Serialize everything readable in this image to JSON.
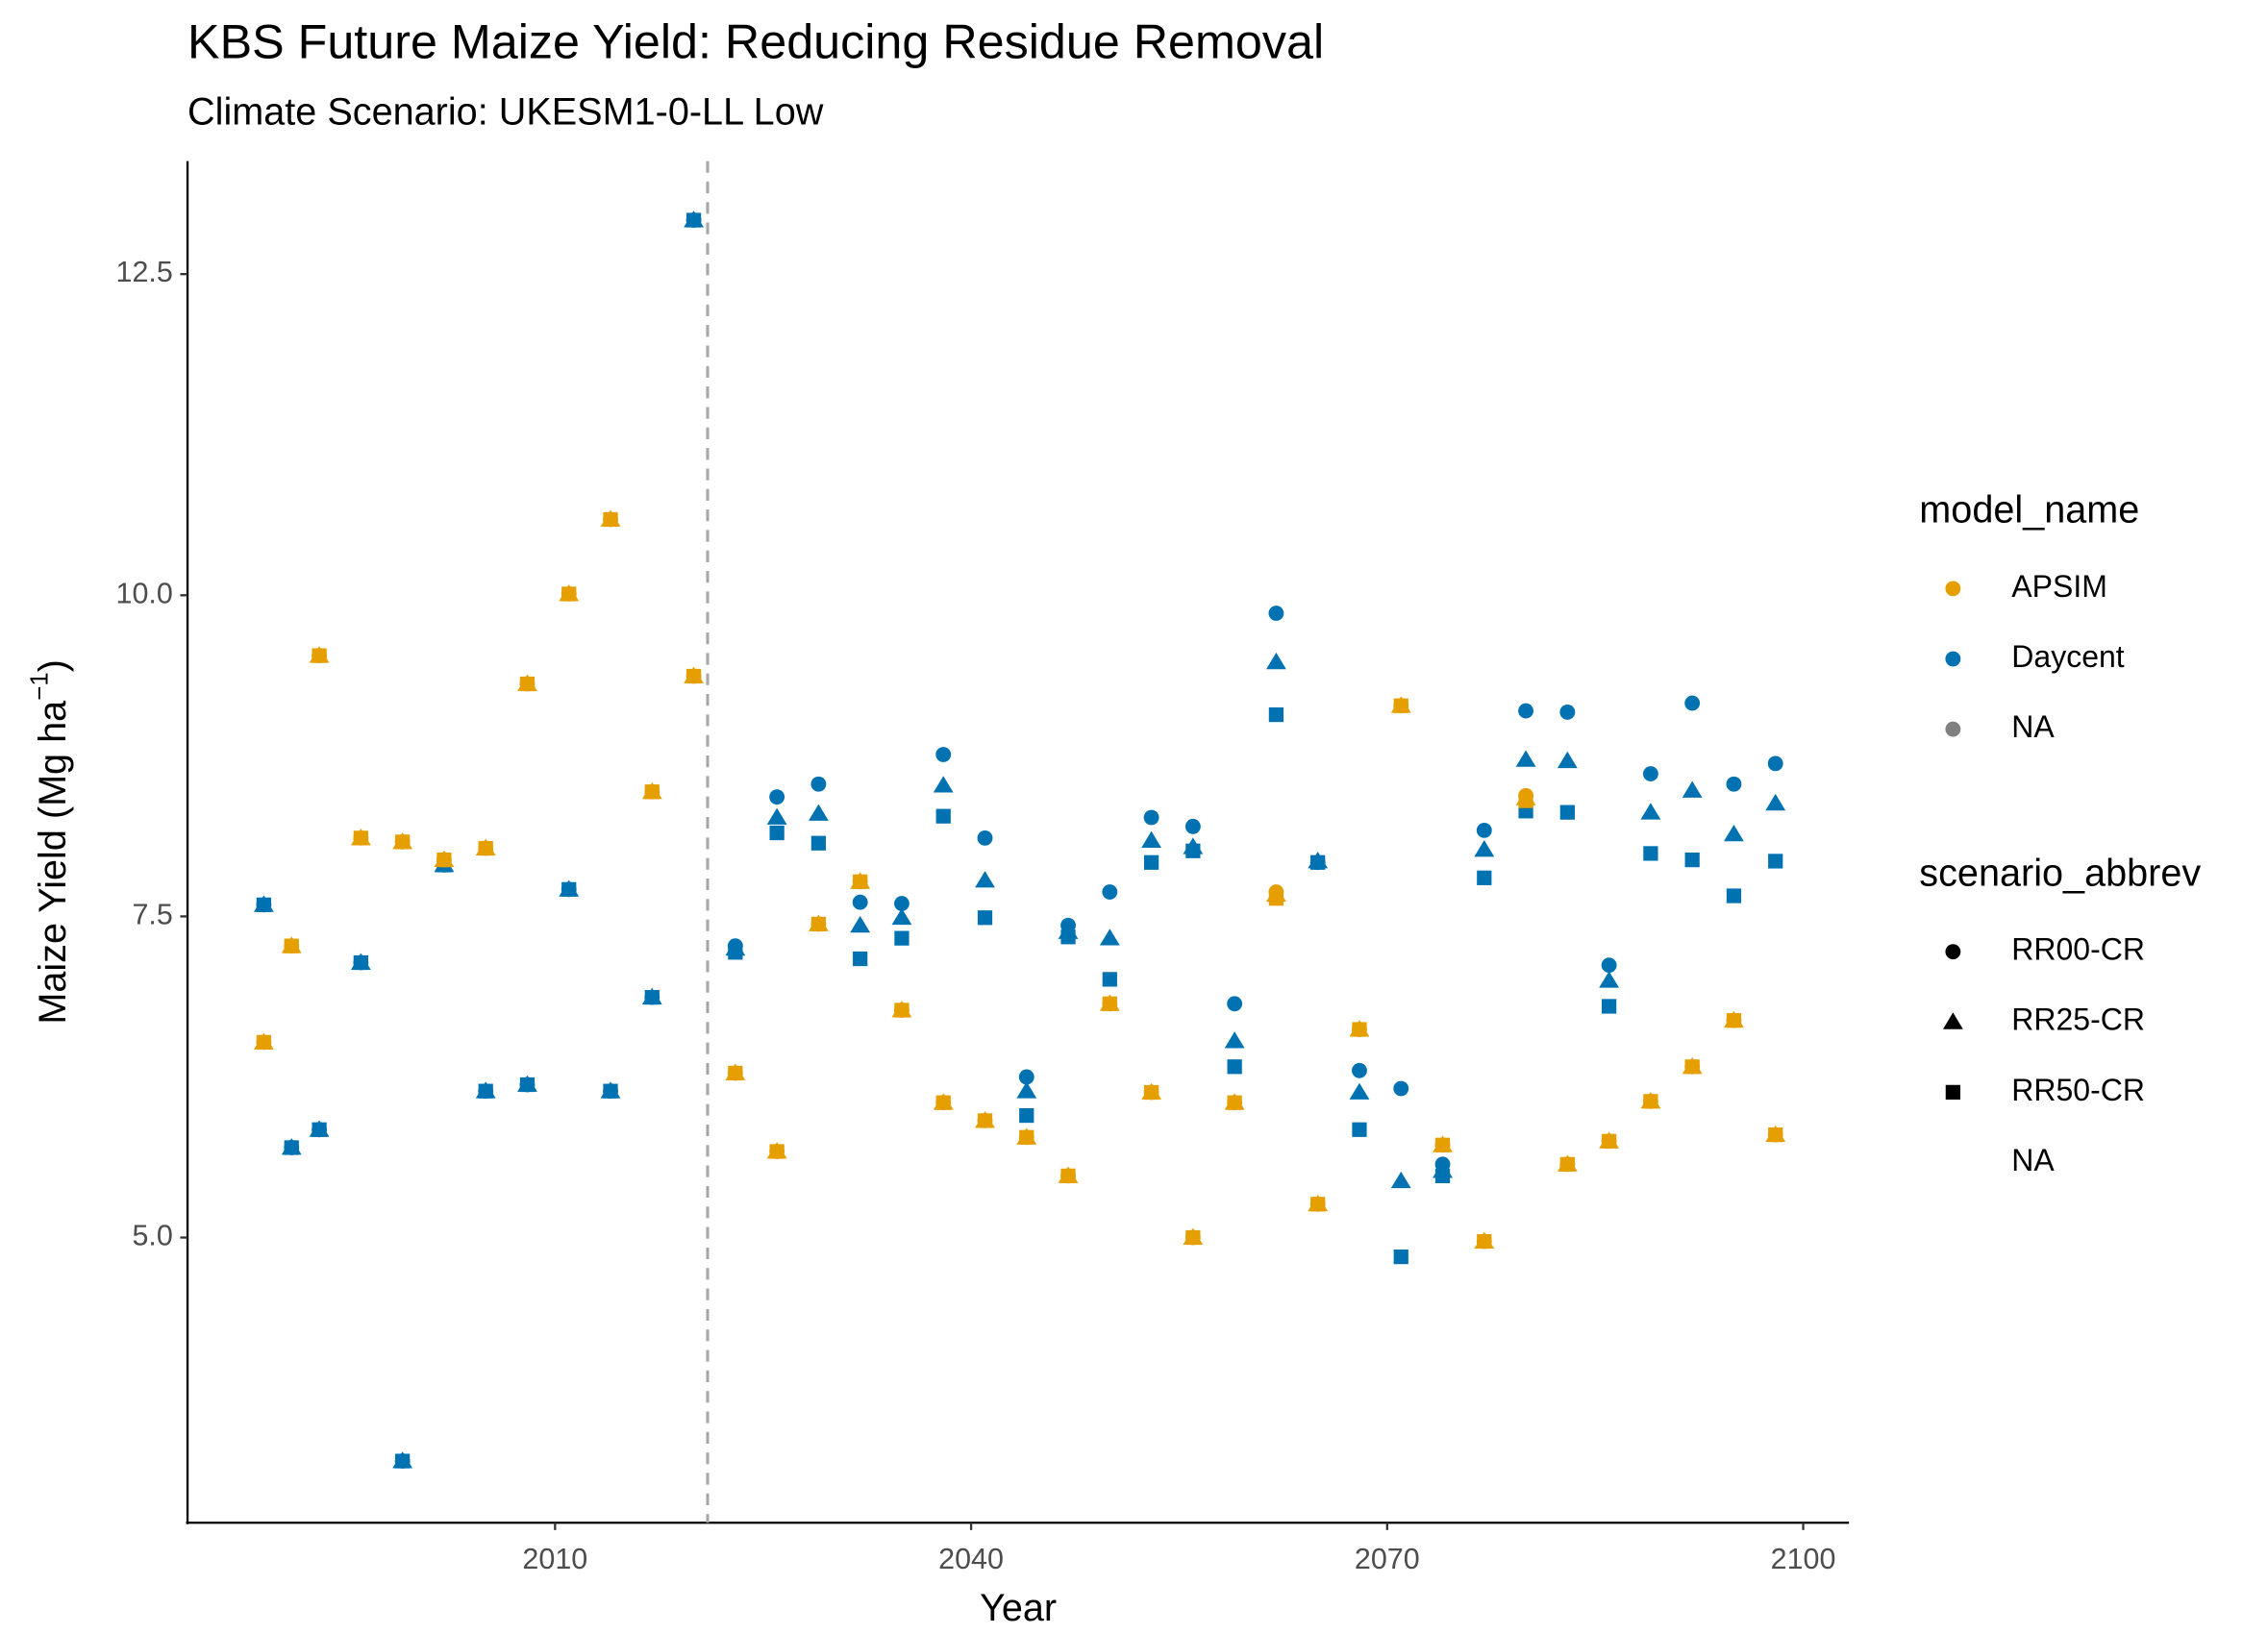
{
  "chart_data": {
    "type": "scatter",
    "title": "KBS Future Maize Yield: Reducing Residue Removal",
    "subtitle": "Climate Scenario: UKESM1-0-LL Low",
    "xlabel": "Year",
    "ylabel": [
      "Maize Yield (Mg ha",
      "−1",
      ")"
    ],
    "xlim": [
      1983.5,
      2103.3
    ],
    "ylim": [
      2.78,
      13.38
    ],
    "xticks": [
      2010,
      2040,
      2070,
      2100
    ],
    "yticks": [
      {
        "value": 5,
        "label": "5.0"
      },
      {
        "value": 7.5,
        "label": "7.5"
      },
      {
        "value": 10,
        "label": "10.0"
      },
      {
        "value": 12.5,
        "label": "12.5"
      }
    ],
    "grid": false,
    "vline": 2021,
    "vline_color": "#a6a6a6",
    "x": [
      1989,
      1991,
      1993,
      1996,
      1999,
      2002,
      2005,
      2008,
      2011,
      2014,
      2017,
      2020,
      2023,
      2026,
      2029,
      2032,
      2035,
      2038,
      2041,
      2044,
      2047,
      2050,
      2053,
      2056,
      2059,
      2062,
      2065,
      2068,
      2071,
      2074,
      2077,
      2080,
      2083,
      2086,
      2089,
      2092,
      2095,
      2098
    ],
    "legends": [
      {
        "title": "model_name",
        "entries": [
          {
            "label": "APSIM",
            "color": "#E69F00"
          },
          {
            "label": "Daycent",
            "color": "#0072B2"
          },
          {
            "label": "NA",
            "color": "#808080"
          }
        ]
      },
      {
        "title": "scenario_abbrev",
        "entries": [
          {
            "label": "RR00-CR",
            "shape": "circle"
          },
          {
            "label": "RR25-CR",
            "shape": "triangle"
          },
          {
            "label": "RR50-CR",
            "shape": "square"
          },
          {
            "label": "NA"
          }
        ]
      }
    ],
    "series": [
      {
        "model": "Daycent",
        "scenario": "RR50-CR",
        "values": [
          7.59,
          5.7,
          5.84,
          7.14,
          3.26,
          7.9,
          6.14,
          6.19,
          7.71,
          6.14,
          6.87,
          12.92,
          7.22,
          8.15,
          8.07,
          7.17,
          7.33,
          8.28,
          7.49,
          5.95,
          7.34,
          7.01,
          7.92,
          8.01,
          6.33,
          9.07,
          7.92,
          5.84,
          4.85,
          5.48,
          7.8,
          8.32,
          8.31,
          6.8,
          7.99,
          7.94,
          7.66,
          7.93
        ]
      },
      {
        "model": "Daycent",
        "scenario": "RR25-CR",
        "values": [
          7.59,
          5.7,
          5.84,
          7.14,
          3.26,
          7.9,
          6.14,
          6.19,
          7.71,
          6.14,
          6.87,
          12.92,
          7.25,
          8.27,
          8.3,
          7.43,
          7.49,
          8.52,
          7.78,
          6.14,
          7.38,
          7.33,
          8.09,
          8.04,
          6.53,
          9.48,
          7.93,
          6.13,
          5.44,
          5.52,
          8.02,
          8.72,
          8.71,
          7.0,
          8.31,
          8.48,
          8.14,
          8.38
        ]
      },
      {
        "model": "Daycent",
        "scenario": "RR00-CR",
        "values": [
          7.59,
          5.7,
          5.84,
          7.14,
          3.26,
          7.9,
          6.14,
          6.19,
          7.71,
          6.14,
          6.87,
          12.92,
          7.27,
          8.43,
          8.53,
          7.61,
          7.6,
          8.76,
          8.11,
          6.25,
          7.43,
          7.69,
          8.27,
          8.2,
          6.82,
          9.86,
          7.92,
          6.3,
          6.16,
          5.57,
          8.17,
          9.1,
          9.09,
          7.12,
          8.61,
          9.16,
          8.53,
          8.69
        ]
      },
      {
        "model": "APSIM",
        "scenario": "RR50-CR",
        "values": [
          6.52,
          7.27,
          9.53,
          8.11,
          8.08,
          7.94,
          8.03,
          9.31,
          10.01,
          10.59,
          8.47,
          9.37,
          6.28,
          5.67,
          7.44,
          7.77,
          6.77,
          6.05,
          5.91,
          5.78,
          5.48,
          6.82,
          6.13,
          5.0,
          6.05,
          7.64,
          5.26,
          6.62,
          9.14,
          5.72,
          4.97,
          8.4,
          5.57,
          5.75,
          6.06,
          6.33,
          6.69,
          5.8
        ]
      },
      {
        "model": "APSIM",
        "scenario": "RR25-CR",
        "values": [
          6.52,
          7.27,
          9.53,
          8.11,
          8.08,
          7.94,
          8.03,
          9.31,
          10.01,
          10.59,
          8.47,
          9.37,
          6.28,
          5.67,
          7.44,
          7.77,
          6.77,
          6.05,
          5.91,
          5.78,
          5.48,
          6.82,
          6.13,
          5.0,
          6.05,
          7.67,
          5.26,
          6.62,
          9.14,
          5.72,
          4.97,
          8.42,
          5.57,
          5.75,
          6.06,
          6.33,
          6.69,
          5.8
        ]
      },
      {
        "model": "APSIM",
        "scenario": "RR00-CR",
        "values": [
          6.52,
          7.27,
          9.53,
          8.11,
          8.08,
          7.94,
          8.03,
          9.31,
          10.01,
          10.59,
          8.47,
          9.37,
          6.28,
          5.67,
          7.44,
          7.77,
          6.77,
          6.05,
          5.91,
          5.78,
          5.48,
          6.82,
          6.13,
          5.0,
          6.05,
          7.69,
          5.26,
          6.62,
          9.14,
          5.72,
          4.97,
          8.44,
          5.57,
          5.75,
          6.06,
          6.33,
          6.69,
          5.8
        ]
      }
    ]
  }
}
